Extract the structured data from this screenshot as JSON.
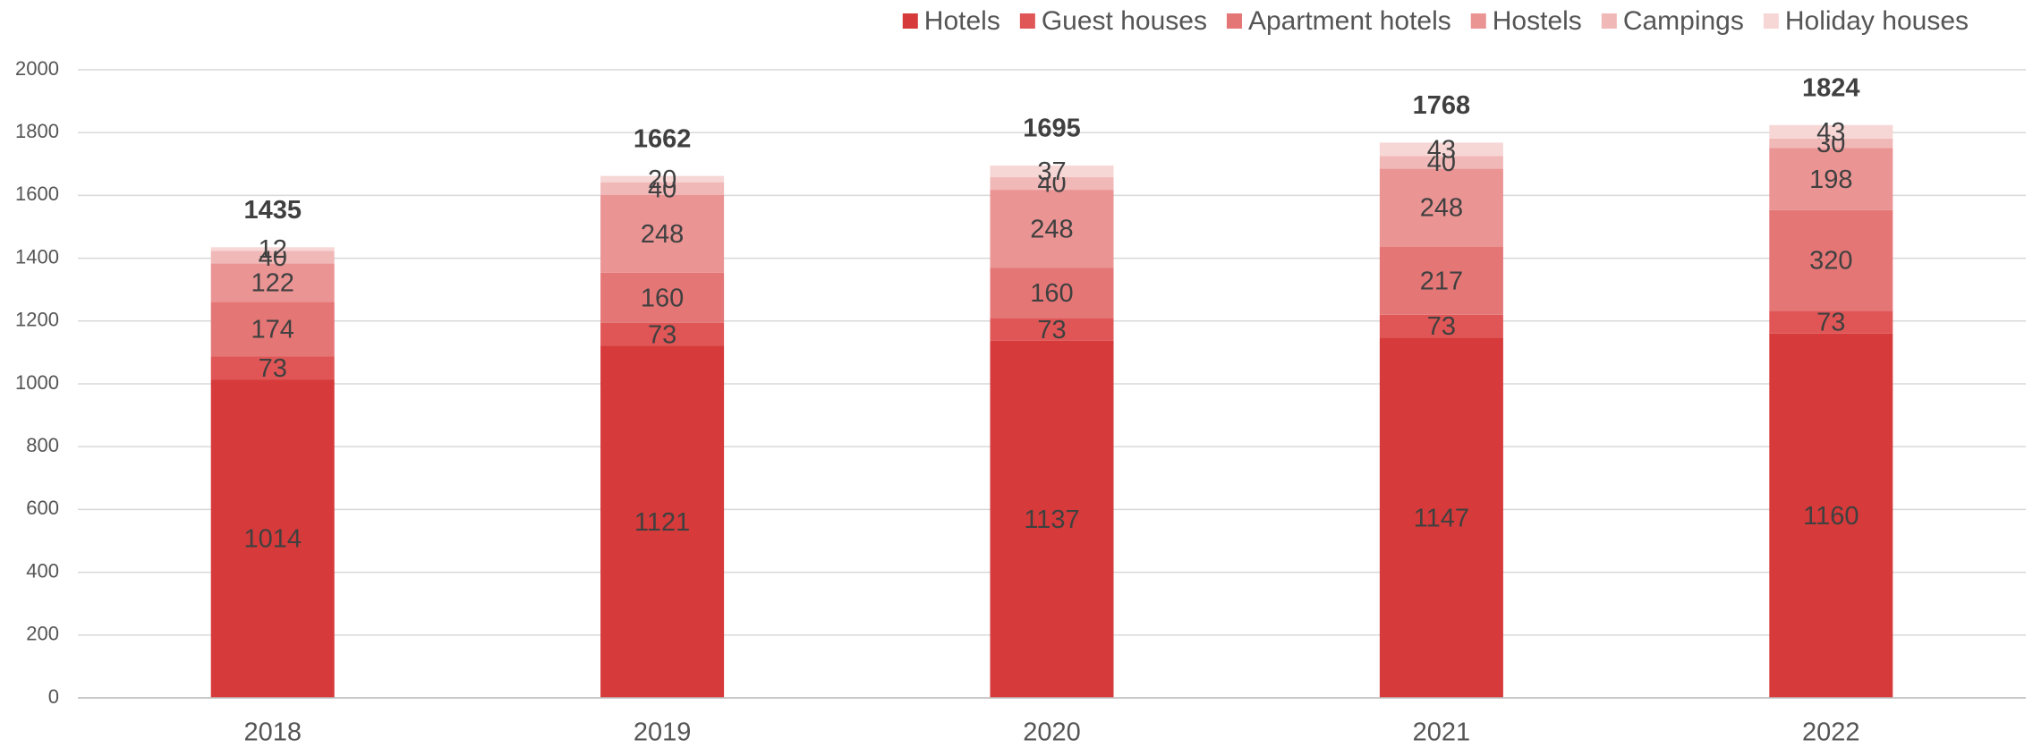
{
  "chart_data": {
    "type": "stacked_bar",
    "categories": [
      "2018",
      "2019",
      "2020",
      "2021",
      "2022"
    ],
    "series": [
      {
        "name": "Hotels",
        "color": "#d63a3a",
        "values": [
          1014,
          1121,
          1137,
          1147,
          1160
        ]
      },
      {
        "name": "Guest houses",
        "color": "#e05656",
        "values": [
          73,
          73,
          73,
          73,
          73
        ]
      },
      {
        "name": "Apartment hotels",
        "color": "#e57676",
        "values": [
          174,
          160,
          160,
          217,
          320
        ]
      },
      {
        "name": "Hostels",
        "color": "#eb9494",
        "values": [
          122,
          248,
          248,
          248,
          198
        ]
      },
      {
        "name": "Campings",
        "color": "#f1b8b8",
        "values": [
          40,
          40,
          40,
          40,
          30
        ]
      },
      {
        "name": "Holiday houses",
        "color": "#f7d6d6",
        "values": [
          12,
          20,
          37,
          43,
          43
        ]
      }
    ],
    "totals": [
      1435,
      1662,
      1695,
      1768,
      1824
    ],
    "ylim": [
      0,
      2000
    ],
    "yticks": [
      0,
      200,
      400,
      600,
      800,
      1000,
      1200,
      1400,
      1600,
      1800,
      2000
    ],
    "grid": true,
    "legend": "top-right"
  }
}
